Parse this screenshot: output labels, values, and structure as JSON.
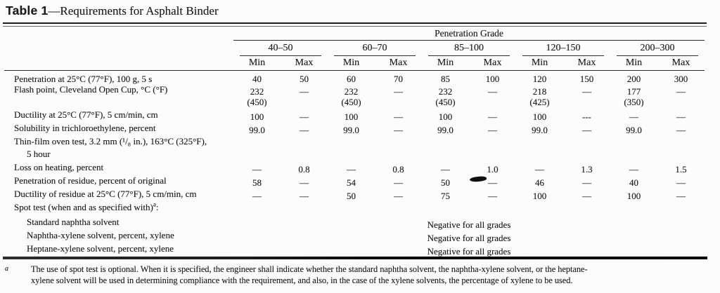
{
  "page": {
    "title_prefix": "Table 1",
    "title_rest": "—Requirements for Asphalt Binder"
  },
  "table": {
    "group_header": "Penetration Grade",
    "grades": [
      "40–50",
      "60–70",
      "85–100",
      "120–150",
      "200–300"
    ],
    "min": "Min",
    "max": "Max",
    "rows": [
      {
        "label": "Penetration at 25°C (77°F), 100 g, 5 s",
        "values": [
          "40",
          "50",
          "60",
          "70",
          "85",
          "100",
          "120",
          "150",
          "200",
          "300"
        ]
      },
      {
        "label": "Flash point, Cleveland Open Cup, °C (°F)",
        "values": [
          "232",
          "—",
          "232",
          "—",
          "232",
          "—",
          "218",
          "—",
          "177",
          "—"
        ],
        "subs": [
          "(450)",
          "",
          "(450)",
          "",
          "(450)",
          "",
          "(425)",
          "",
          "(350)",
          ""
        ]
      },
      {
        "label": "Ductility at 25°C (77°F), 5 cm/min, cm",
        "values": [
          "100",
          "—",
          "100",
          "—",
          "100",
          "—",
          "100",
          "---",
          "—",
          "—"
        ]
      },
      {
        "label": "Solubility in trichloroethylene, percent",
        "values": [
          "99.0",
          "—",
          "99.0",
          "—",
          "99.0",
          "—",
          "99.0",
          "—",
          "99.0",
          "—"
        ]
      },
      {
        "label": "Thin-film oven test, 3.2 mm (¹/₈ in.), 163°C (325°F),"
      },
      {
        "label": "5 hour"
      },
      {
        "label": "Loss on heating, percent",
        "values": [
          "—",
          "0.8",
          "—",
          "0.8",
          "—",
          "1.0",
          "—",
          "1.3",
          "—",
          "1.5"
        ]
      },
      {
        "label": "Penetration of residue, percent of original",
        "values": [
          "58",
          "—",
          "54",
          "—",
          "50",
          "—",
          "46",
          "—",
          "40",
          "—"
        ]
      },
      {
        "label": "Ductility of residue at 25°C (77°F), 5 cm/min, cm",
        "values": [
          "—",
          "—",
          "50",
          "—",
          "75",
          "—",
          "100",
          "—",
          "100",
          "—"
        ]
      },
      {
        "label": "Spot test (when and as specified with)",
        "sup": "a",
        "suffix": ":"
      },
      {
        "label": "Standard naphtha solvent",
        "span_value": "Negative for all grades"
      },
      {
        "label": "Naphtha-xylene solvent, percent, xylene",
        "span_value": "Negative for all grades"
      },
      {
        "label": "Heptane-xylene solvent, percent, xylene",
        "span_value": "Negative for all grades"
      }
    ]
  },
  "footnote": {
    "marker": "a",
    "lines": [
      "The use of spot test is optional. When it is specified, the engineer shall indicate whether the standard naphtha solvent, the naphtha-xylene solvent, or the heptane-",
      "xylene solvent will be used in determining compliance with the requirement, and also, in the case of the xylene solvents, the percentage of xylene to be used."
    ]
  },
  "colors": {
    "paper": "#fcfcfc",
    "ink": "#1b1b1b",
    "rule": "#242424"
  }
}
